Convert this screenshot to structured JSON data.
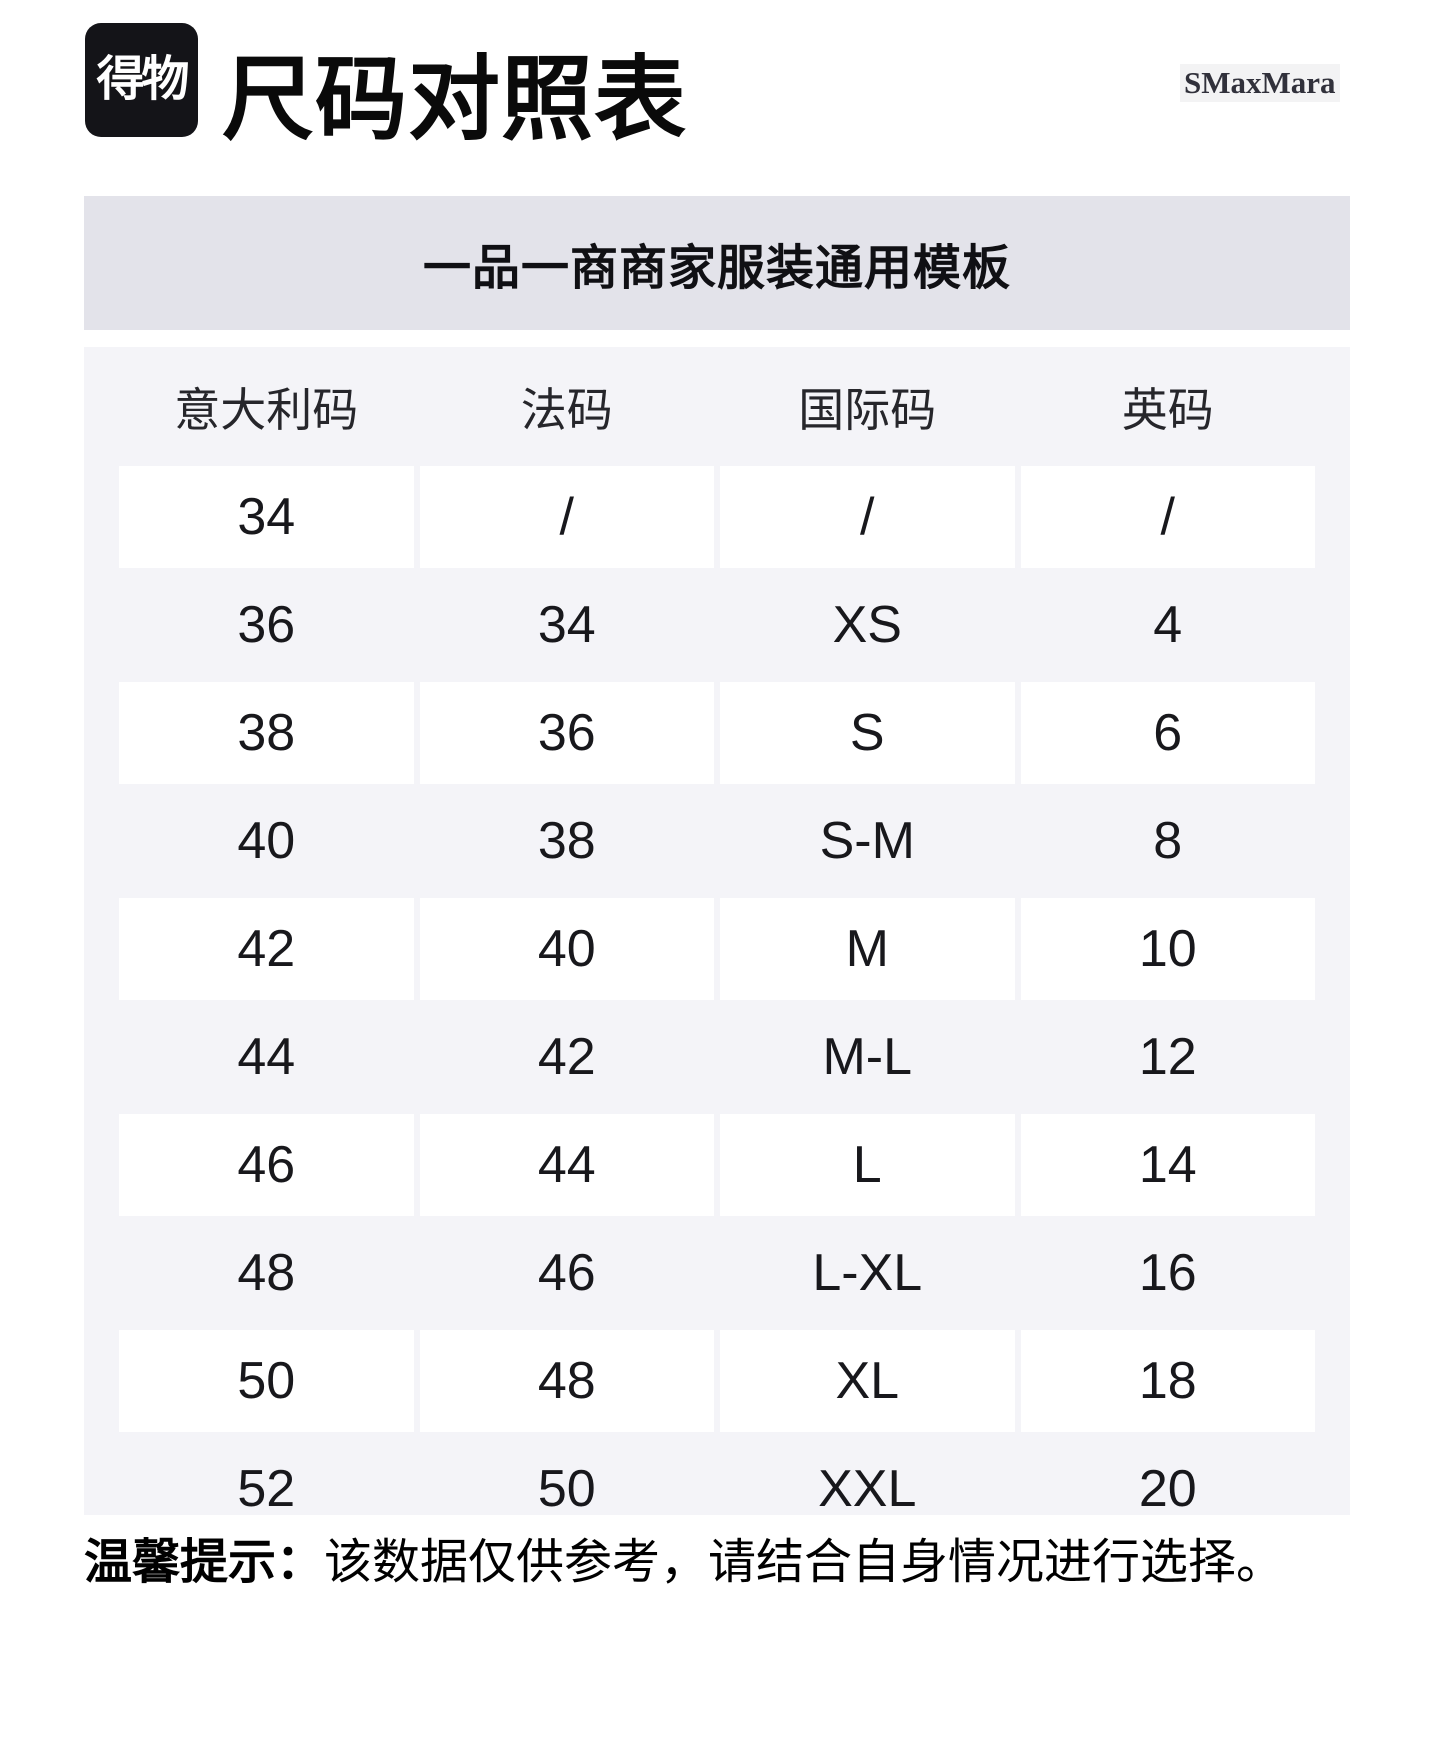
{
  "header": {
    "logo_text": "得物",
    "title": "尺码对照表",
    "brand_watermark": "SMaxMara"
  },
  "banner": {
    "text": "一品一商商家服装通用模板"
  },
  "chart_data": {
    "type": "table",
    "title": "一品一商商家服装通用模板",
    "columns": [
      "意大利码",
      "法码",
      "国际码",
      "英码"
    ],
    "rows": [
      [
        "34",
        "/",
        "/",
        "/"
      ],
      [
        "36",
        "34",
        "XS",
        "4"
      ],
      [
        "38",
        "36",
        "S",
        "6"
      ],
      [
        "40",
        "38",
        "S-M",
        "8"
      ],
      [
        "42",
        "40",
        "M",
        "10"
      ],
      [
        "44",
        "42",
        "M-L",
        "12"
      ],
      [
        "46",
        "44",
        "L",
        "14"
      ],
      [
        "48",
        "46",
        "L-XL",
        "16"
      ],
      [
        "50",
        "48",
        "XL",
        "18"
      ],
      [
        "52",
        "50",
        "XXL",
        "20"
      ]
    ]
  },
  "note": {
    "label": "温馨提示：",
    "text": "该数据仅供参考，请结合自身情况进行选择。"
  },
  "colors": {
    "logo_bg": "#141418",
    "banner_bg": "#e3e3ea",
    "table_bg": "#f4f4f8",
    "cell_bg": "#ffffff",
    "text": "#111111"
  }
}
